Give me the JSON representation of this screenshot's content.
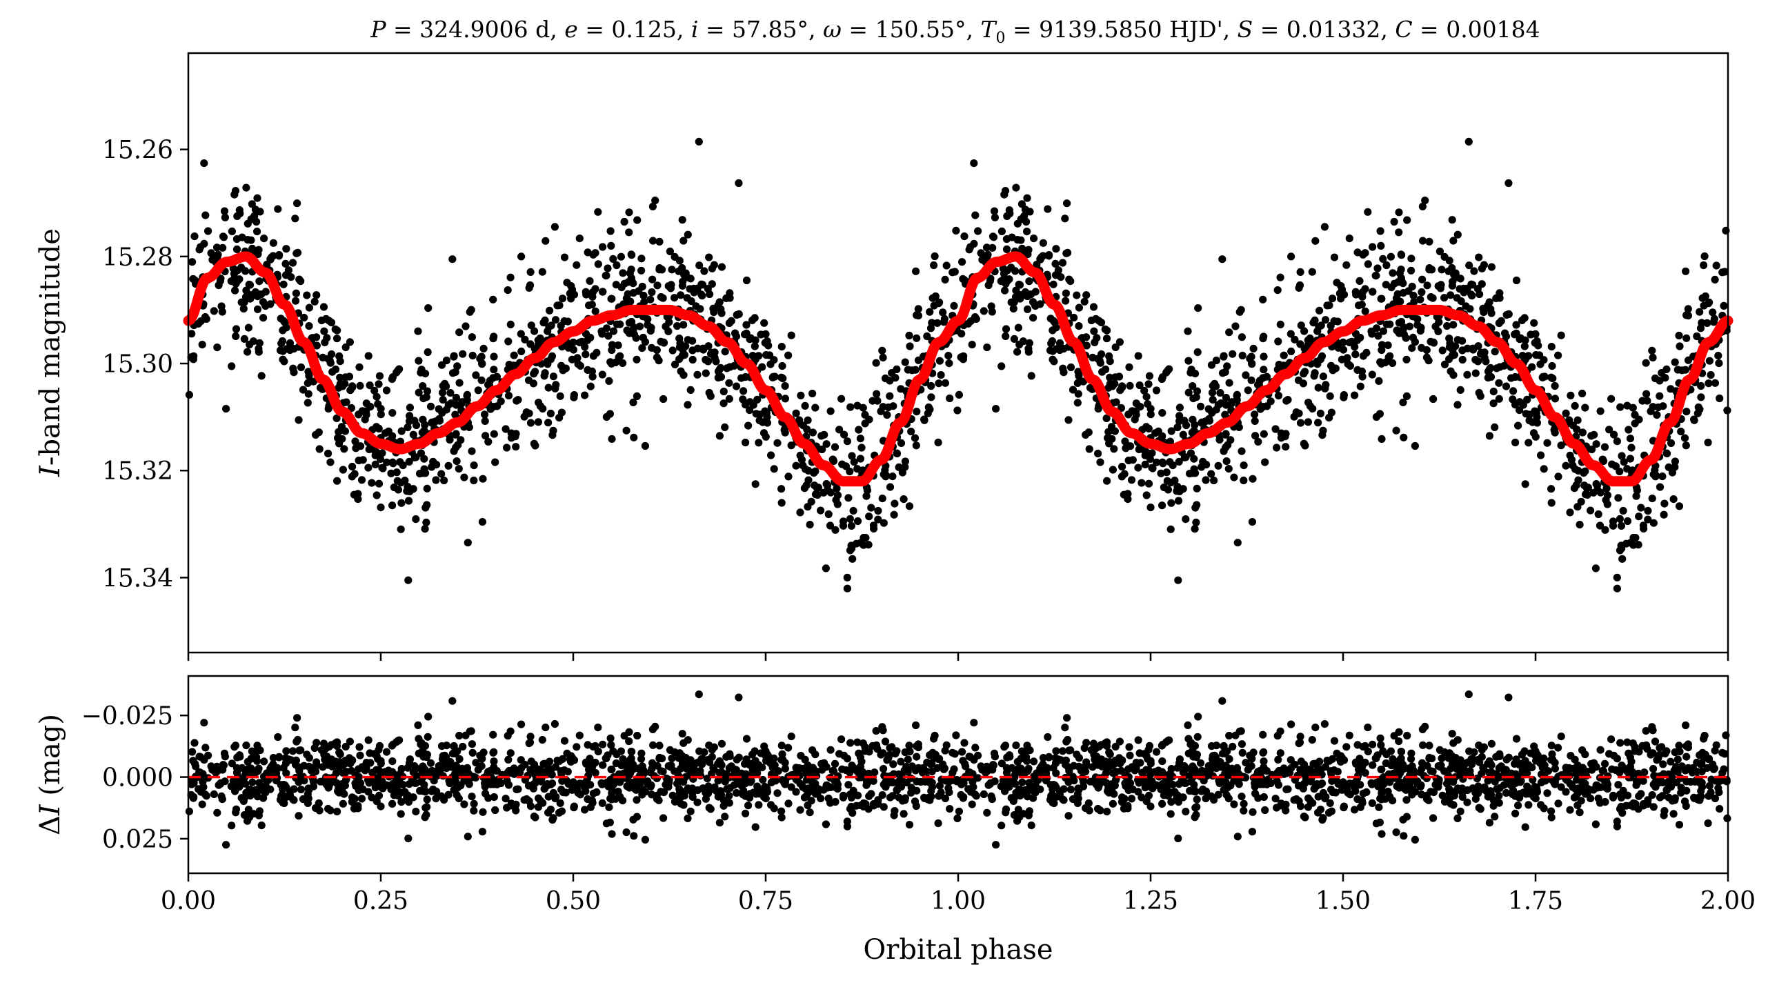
{
  "chart_data": [
    {
      "type": "scatter",
      "panel": "top",
      "title_parts": {
        "P_label": "P",
        "P_value": " = 324.9006 d, ",
        "e_label": "e",
        "e_value": " = 0.125, ",
        "i_label": "i",
        "i_value": " = 57.85°, ",
        "omega_label": "ω",
        "omega_value": " = 150.55°, ",
        "T0_label": "T",
        "T0_sub": "0",
        "T0_value": " = 9139.5850 HJD', ",
        "S_label": "S",
        "S_value": " = 0.01332, ",
        "C_label": "C",
        "C_value": " = 0.00184"
      },
      "ylabel_italic": "I",
      "ylabel_rest": "-band magnitude",
      "xlabel": "",
      "xlim": [
        0,
        2
      ],
      "ylim": [
        15.354,
        15.242
      ],
      "y_inverted": true,
      "yticks": [
        15.26,
        15.28,
        15.3,
        15.32,
        15.34
      ],
      "ytick_labels": [
        "15.26",
        "15.28",
        "15.30",
        "15.32",
        "15.34"
      ],
      "xticks": [
        0,
        0.25,
        0.5,
        0.75,
        1.0,
        1.25,
        1.5,
        1.75,
        2.0
      ],
      "series": [
        {
          "name": "I-band photometry",
          "kind": "scatter",
          "color": "#000000",
          "x_repeat_period": 1.0,
          "binned_mean": {
            "phase": [
              0.0,
              0.025,
              0.05,
              0.075,
              0.1,
              0.125,
              0.15,
              0.175,
              0.2,
              0.225,
              0.25,
              0.275,
              0.3,
              0.325,
              0.35,
              0.375,
              0.4,
              0.425,
              0.45,
              0.475,
              0.5,
              0.525,
              0.55,
              0.575,
              0.6,
              0.625,
              0.65,
              0.675,
              0.7,
              0.725,
              0.75,
              0.775,
              0.8,
              0.825,
              0.85,
              0.875,
              0.9,
              0.925,
              0.95,
              0.975,
              1.0
            ],
            "magnitude": [
              15.292,
              15.284,
              15.281,
              15.28,
              15.283,
              15.289,
              15.296,
              15.303,
              15.309,
              15.313,
              15.315,
              15.316,
              15.315,
              15.313,
              15.311,
              15.308,
              15.305,
              15.302,
              15.299,
              15.296,
              15.294,
              15.292,
              15.291,
              15.29,
              15.29,
              15.29,
              15.291,
              15.293,
              15.296,
              15.3,
              15.305,
              15.31,
              15.315,
              15.319,
              15.322,
              15.322,
              15.318,
              15.311,
              15.303,
              15.296,
              15.292
            ]
          },
          "scatter_sigma_mag": 0.008,
          "approx_points_per_cycle": 1300
        },
        {
          "name": "Model fit",
          "kind": "line",
          "color": "#ff0000",
          "x_repeat_period": 1.0,
          "phase": [
            0.0,
            0.025,
            0.05,
            0.075,
            0.1,
            0.125,
            0.15,
            0.175,
            0.2,
            0.225,
            0.25,
            0.275,
            0.3,
            0.325,
            0.35,
            0.375,
            0.4,
            0.425,
            0.45,
            0.475,
            0.5,
            0.525,
            0.55,
            0.575,
            0.6,
            0.625,
            0.65,
            0.675,
            0.7,
            0.725,
            0.75,
            0.775,
            0.8,
            0.825,
            0.85,
            0.875,
            0.9,
            0.925,
            0.95,
            0.975,
            1.0
          ],
          "magnitude": [
            15.292,
            15.284,
            15.281,
            15.28,
            15.283,
            15.289,
            15.296,
            15.303,
            15.309,
            15.313,
            15.315,
            15.316,
            15.315,
            15.313,
            15.311,
            15.308,
            15.305,
            15.302,
            15.299,
            15.296,
            15.294,
            15.292,
            15.291,
            15.29,
            15.29,
            15.29,
            15.291,
            15.293,
            15.296,
            15.3,
            15.305,
            15.31,
            15.315,
            15.319,
            15.322,
            15.322,
            15.318,
            15.311,
            15.303,
            15.296,
            15.292
          ]
        }
      ]
    },
    {
      "type": "scatter",
      "panel": "bottom",
      "title": "",
      "ylabel_delta": "Δ",
      "ylabel_italic": "I",
      "ylabel_rest": " (mag)",
      "xlabel": "Orbital phase",
      "xlim": [
        0,
        2
      ],
      "ylim": [
        0.039,
        -0.041
      ],
      "y_inverted": true,
      "yticks": [
        -0.025,
        0.0,
        0.025
      ],
      "ytick_labels": [
        "−0.025",
        "0.000",
        "0.025"
      ],
      "xticks": [
        0,
        0.25,
        0.5,
        0.75,
        1.0,
        1.25,
        1.5,
        1.75,
        2.0
      ],
      "xtick_labels": [
        "0.00",
        "0.25",
        "0.50",
        "0.75",
        "1.00",
        "1.25",
        "1.50",
        "1.75",
        "2.00"
      ],
      "series": [
        {
          "name": "Residuals",
          "kind": "scatter",
          "color": "#000000",
          "x_repeat_period": 1.0,
          "mean": 0.0,
          "scatter_sigma_mag": 0.008,
          "range": [
            -0.034,
            0.029
          ],
          "approx_points_per_cycle": 1300
        },
        {
          "name": "Zero line",
          "kind": "hline",
          "y": 0.0,
          "color": "#ff0000",
          "linestyle": "dashed"
        }
      ]
    }
  ]
}
